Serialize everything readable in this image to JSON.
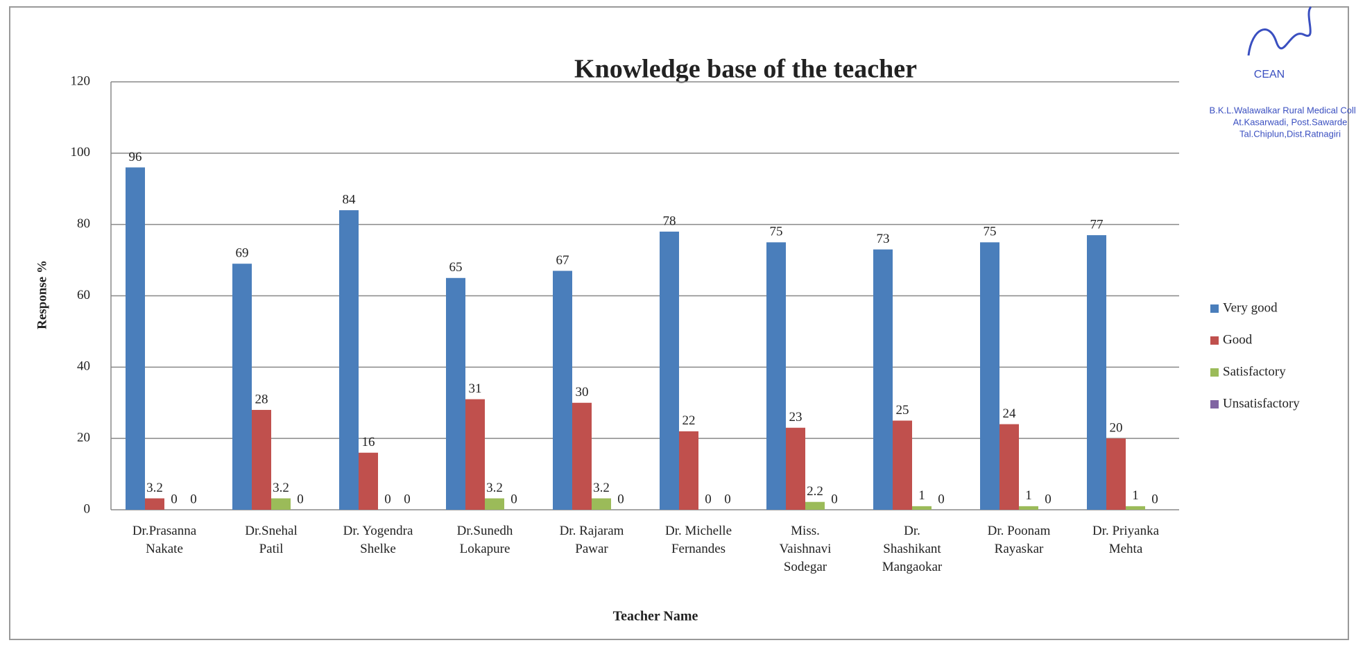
{
  "chart_data": {
    "type": "bar",
    "title": "Knowledge base of the teacher",
    "xlabel": "Teacher Name",
    "ylabel": "Response %",
    "categories": [
      "Dr.Prasanna\nNakate",
      "Dr.Snehal\nPatil",
      "Dr. Yogendra\nShelke",
      "Dr.Sunedh\nLokapure",
      "Dr. Rajaram\nPawar",
      "Dr. Michelle\nFernandes",
      "Miss.\nVaishnavi\nSodegar",
      "Dr.\nShashikant\nMangaokar",
      "Dr. Poonam\nRayaskar",
      "Dr. Priyanka\nMehta"
    ],
    "series": [
      {
        "name": "Very good",
        "color": "#4a7ebb",
        "values": [
          96,
          69,
          84,
          65,
          67,
          78,
          75,
          73,
          75,
          77
        ]
      },
      {
        "name": "Good",
        "color": "#c0504d",
        "values": [
          3.2,
          28,
          16,
          31,
          30,
          22,
          23,
          25,
          24,
          20
        ]
      },
      {
        "name": "Satisfactory",
        "color": "#9bbb59",
        "values": [
          0,
          3.2,
          0,
          3.2,
          3.2,
          0,
          2.2,
          1,
          1,
          1
        ]
      },
      {
        "name": "Unsatisfactory",
        "color": "#8064a2",
        "values": [
          0,
          0,
          0,
          0,
          0,
          0,
          0,
          0,
          0,
          0
        ]
      }
    ],
    "ylim": [
      0,
      120
    ],
    "yticks": [
      0,
      20,
      40,
      60,
      80,
      100,
      120
    ],
    "grid": true,
    "legend": "right",
    "annotations": [
      "CEAN",
      "B.K.L.Walawalkar Rural Medical College",
      "At.Kasarwadi, Post.Sawarde",
      "Tal.Chiplun,Dist.Ratnagiri"
    ]
  }
}
